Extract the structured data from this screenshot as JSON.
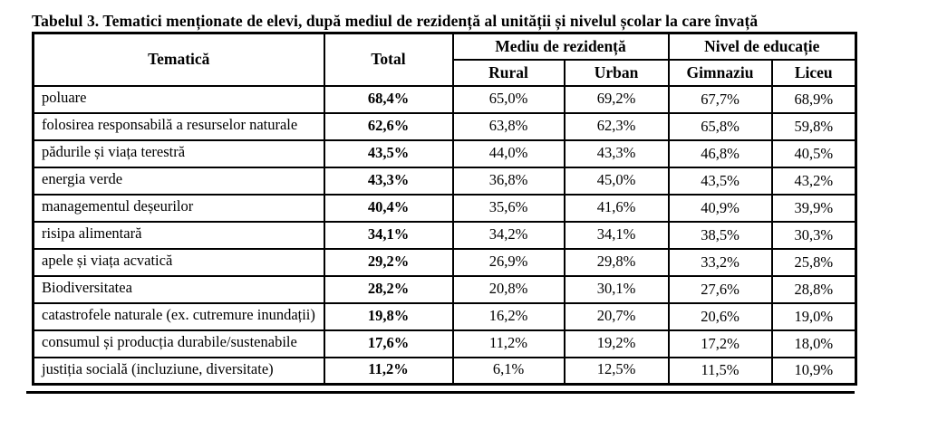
{
  "title": "Tabelul 3. Tematici menționate de elevi, după mediul de rezidență al unității și nivelul școlar la care învață",
  "colors": {
    "text": "#000000",
    "border": "#000000",
    "background": "#ffffff"
  },
  "table": {
    "headers": {
      "tematica": "Tematică",
      "total": "Total",
      "mediu_de_rezidenta": "Mediu de rezidență",
      "nivel_de_educatie": "Nivel de educație",
      "rural": "Rural",
      "urban": "Urban",
      "gimnaziu": "Gimnaziu",
      "liceu": "Liceu"
    },
    "rows": [
      {
        "tematica": "poluare",
        "total": "68,4%",
        "rural": "65,0%",
        "urban": "69,2%",
        "gimnaziu": "67,7%",
        "liceu": "68,9%"
      },
      {
        "tematica": "folosirea responsabilă a resurselor naturale",
        "total": "62,6%",
        "rural": "63,8%",
        "urban": "62,3%",
        "gimnaziu": "65,8%",
        "liceu": "59,8%"
      },
      {
        "tematica": "pădurile și viața terestră",
        "total": "43,5%",
        "rural": "44,0%",
        "urban": "43,3%",
        "gimnaziu": "46,8%",
        "liceu": "40,5%"
      },
      {
        "tematica": "energia verde",
        "total": "43,3%",
        "rural": "36,8%",
        "urban": "45,0%",
        "gimnaziu": "43,5%",
        "liceu": "43,2%"
      },
      {
        "tematica": "managementul deșeurilor",
        "total": "40,4%",
        "rural": "35,6%",
        "urban": "41,6%",
        "gimnaziu": "40,9%",
        "liceu": "39,9%"
      },
      {
        "tematica": "risipa alimentară",
        "total": "34,1%",
        "rural": "34,2%",
        "urban": "34,1%",
        "gimnaziu": "38,5%",
        "liceu": "30,3%"
      },
      {
        "tematica": "apele și viața acvatică",
        "total": "29,2%",
        "rural": "26,9%",
        "urban": "29,8%",
        "gimnaziu": "33,2%",
        "liceu": "25,8%"
      },
      {
        "tematica": "Biodiversitatea",
        "total": "28,2%",
        "rural": "20,8%",
        "urban": "30,1%",
        "gimnaziu": "27,6%",
        "liceu": "28,8%"
      },
      {
        "tematica": "catastrofele naturale (ex. cutremure inundații)",
        "total": "19,8%",
        "rural": "16,2%",
        "urban": "20,7%",
        "gimnaziu": "20,6%",
        "liceu": "19,0%"
      },
      {
        "tematica": "consumul și producția durabile/sustenabile",
        "total": "17,6%",
        "rural": "11,2%",
        "urban": "19,2%",
        "gimnaziu": "17,2%",
        "liceu": "18,0%"
      },
      {
        "tematica": "justiția socială (incluziune, diversitate)",
        "total": "11,2%",
        "rural": "6,1%",
        "urban": "12,5%",
        "gimnaziu": "11,5%",
        "liceu": "10,9%"
      }
    ]
  }
}
